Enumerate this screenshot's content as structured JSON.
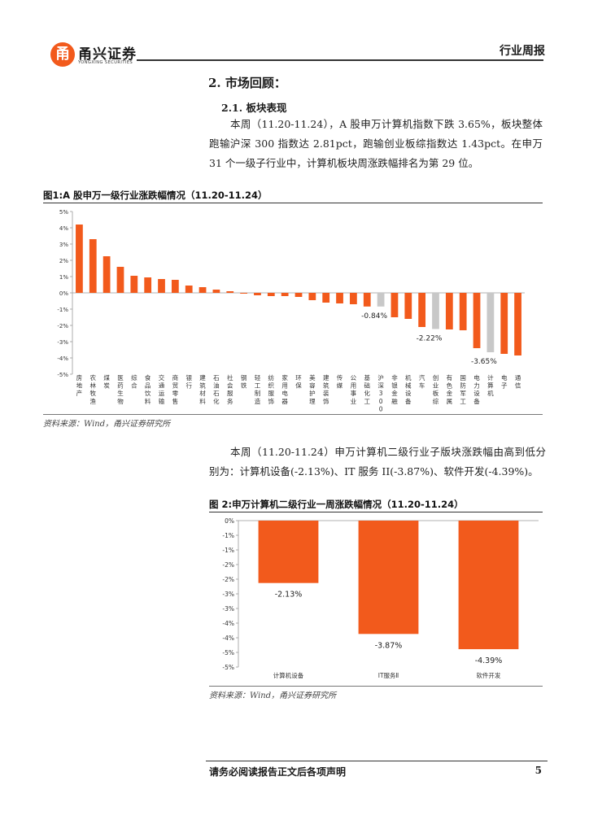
{
  "header": {
    "logo_glyph": "甬",
    "logo_name": "甬兴证券",
    "logo_sub": "YONGXING SECURITIES",
    "report_type": "行业周报"
  },
  "section": {
    "title": "2. 市场回顾：",
    "subtitle": "2.1. 板块表现",
    "paragraph1": "本周（11.20-11.24），A 股申万计算机指数下跌 3.65%，板块整体跑输沪深 300 指数达 2.81pct，跑输创业板综指数达 1.43pct。在申万 31 个一级子行业中，计算机板块周涨跌幅排名为第 29 位。",
    "paragraph2": "本周（11.20-11.24）申万计算机二级行业子版块涨跌幅由高到低分别为：计算机设备(-2.13%)、IT 服务 II(-3.87%)、软件开发(-4.39%)。"
  },
  "figures": {
    "fig1_title": "图1:A 股申万一级行业涨跌幅情况（11.20-11.24）",
    "fig1_source": "资料来源：Wind，甬兴证券研究所",
    "fig2_title": "图 2:申万计算机二级行业一周涨跌幅情况（11.20-11.24）",
    "fig2_source": "资料来源：Wind，甬兴证券研究所"
  },
  "footer": {
    "disclaimer": "请务必阅读报告正文后各项声明",
    "page": "5"
  },
  "chart_data": [
    {
      "type": "bar",
      "title": "图1:A 股申万一级行业涨跌幅情况（11.20-11.24）",
      "categories": [
        "房地产",
        "农林牧渔",
        "煤炭",
        "医药生物",
        "综合",
        "食品饮料",
        "交通运输",
        "商贸零售",
        "银行",
        "建筑材料",
        "石油石化",
        "社会服务",
        "钢铁",
        "轻工制造",
        "纺织服饰",
        "家用电器",
        "环保",
        "美容护理",
        "建筑装饰",
        "传媒",
        "公用事业",
        "基础化工",
        "沪深300",
        "非银金融",
        "机械设备",
        "汽车",
        "创业板综",
        "有色金属",
        "国防军工",
        "电力设备",
        "计算机",
        "电子",
        "通信"
      ],
      "values": [
        4.2,
        3.3,
        2.25,
        1.6,
        1.05,
        0.95,
        0.85,
        0.8,
        0.45,
        0.35,
        0.2,
        0.1,
        -0.05,
        -0.15,
        -0.2,
        -0.2,
        -0.25,
        -0.45,
        -0.6,
        -0.65,
        -0.7,
        -0.84,
        -0.84,
        -1.5,
        -1.6,
        -2.1,
        -2.22,
        -2.25,
        -2.3,
        -3.4,
        -3.65,
        -3.75,
        -3.85
      ],
      "highlight": [
        "沪深300",
        "创业板综",
        "计算机"
      ],
      "data_labels": {
        "沪深300": "-0.84%",
        "创业板综": "-2.22%",
        "计算机": "-3.65%"
      },
      "yticks": [
        "5%",
        "4%",
        "3%",
        "2%",
        "1%",
        "0%",
        "-1%",
        "-2%",
        "-3%",
        "-4%",
        "-5%"
      ],
      "ylim": [
        -5,
        5
      ],
      "colors": {
        "bar": "#f25a1c",
        "highlight": "#c8c8c8"
      }
    },
    {
      "type": "bar",
      "title": "图 2:申万计算机二级行业一周涨跌幅情况（11.20-11.24）",
      "categories": [
        "计算机设备",
        "IT服务Ⅱ",
        "软件开发"
      ],
      "values": [
        -2.13,
        -3.87,
        -4.39
      ],
      "data_labels": [
        "-2.13%",
        "-3.87%",
        "-4.39%"
      ],
      "yticks": [
        "0%",
        "-1%",
        "-1%",
        "-2%",
        "-2%",
        "-3%",
        "-3%",
        "-4%",
        "-4%",
        "-5%",
        "-5%"
      ],
      "ylim": [
        -5,
        0
      ],
      "colors": {
        "bar": "#f25a1c"
      }
    }
  ]
}
